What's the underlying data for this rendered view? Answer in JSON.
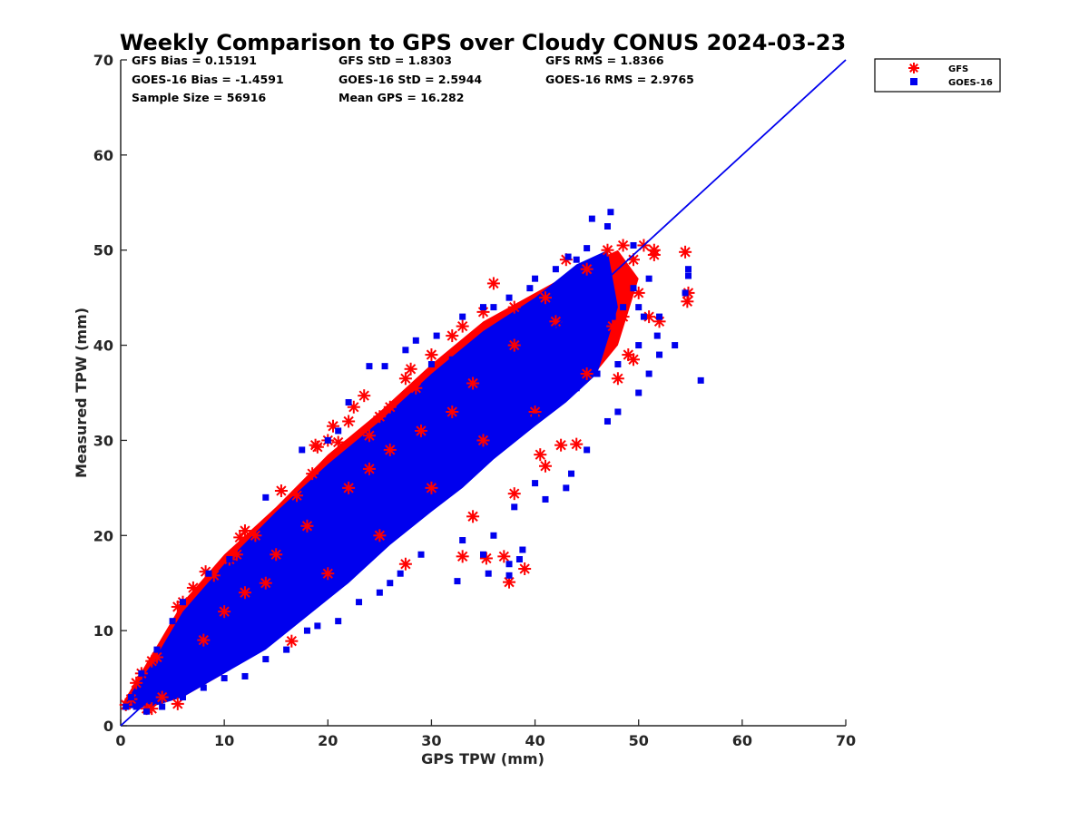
{
  "chart_data": {
    "type": "scatter",
    "title": "Weekly Comparison to GPS over Cloudy CONUS 2024-03-23",
    "xlabel": "GPS TPW (mm)",
    "ylabel": "Measured TPW (mm)",
    "xlim": [
      0,
      70
    ],
    "ylim": [
      0,
      70
    ],
    "xticks": [
      "0",
      "10",
      "20",
      "30",
      "40",
      "50",
      "60",
      "70"
    ],
    "yticks": [
      "0",
      "10",
      "20",
      "30",
      "40",
      "50",
      "60",
      "70"
    ],
    "legend_position": "outside top-right",
    "stats": [
      [
        "GFS Bias = 0.15191",
        "GFS StD = 1.8303",
        "GFS RMS = 1.8366"
      ],
      [
        "GOES-16 Bias = -1.4591",
        "GOES-16 StD = 2.5944",
        "GOES-16 RMS = 2.9765"
      ],
      [
        "Sample Size = 56916",
        "Mean GPS = 16.282",
        ""
      ]
    ],
    "reference_line": {
      "x": [
        0,
        70
      ],
      "y": [
        0,
        70
      ],
      "color": "#0000ee"
    },
    "series": [
      {
        "name": "GFS",
        "marker": "asterisk",
        "color": "#ff0000",
        "points": [
          [
            0.5,
            2.2
          ],
          [
            1,
            2.8
          ],
          [
            1.5,
            4.5
          ],
          [
            2,
            5.5
          ],
          [
            3,
            6.8
          ],
          [
            3.5,
            7.2
          ],
          [
            2.5,
            1.8
          ],
          [
            4,
            3
          ],
          [
            5.5,
            12.5
          ],
          [
            6,
            13
          ],
          [
            7,
            14.5
          ],
          [
            8.2,
            16.2
          ],
          [
            9,
            15.8
          ],
          [
            10.5,
            17.5
          ],
          [
            11.2,
            18
          ],
          [
            11.5,
            19.8
          ],
          [
            12,
            20.5
          ],
          [
            13,
            20
          ],
          [
            15.5,
            24.7
          ],
          [
            17,
            24.2
          ],
          [
            18.5,
            26.5
          ],
          [
            18.8,
            29.5
          ],
          [
            19,
            29.3
          ],
          [
            20,
            30
          ],
          [
            20.5,
            31.5
          ],
          [
            21,
            29.8
          ],
          [
            22,
            32
          ],
          [
            22.5,
            33.5
          ],
          [
            23.5,
            34.7
          ],
          [
            24,
            30.5
          ],
          [
            25,
            32.5
          ],
          [
            26,
            33.5
          ],
          [
            27.5,
            36.5
          ],
          [
            28,
            37.5
          ],
          [
            28.5,
            35.5
          ],
          [
            30,
            39
          ],
          [
            32,
            41
          ],
          [
            33,
            42
          ],
          [
            35,
            43.5
          ],
          [
            36,
            46.5
          ],
          [
            38,
            44
          ],
          [
            41,
            45
          ],
          [
            43,
            49
          ],
          [
            45,
            48
          ],
          [
            47,
            50
          ],
          [
            48.5,
            50.5
          ],
          [
            49.5,
            49
          ],
          [
            50.5,
            50.5
          ],
          [
            51.5,
            50
          ],
          [
            51.5,
            49.5
          ],
          [
            52,
            42.5
          ],
          [
            51,
            43
          ],
          [
            50,
            45.5
          ],
          [
            49,
            39
          ],
          [
            49.5,
            38.5
          ],
          [
            48,
            36.5
          ],
          [
            47.5,
            42
          ],
          [
            48.5,
            43
          ],
          [
            54.5,
            49.8
          ],
          [
            54.8,
            45.5
          ],
          [
            54.7,
            44.6
          ],
          [
            40.5,
            28.5
          ],
          [
            41,
            27.3
          ],
          [
            42.5,
            29.5
          ],
          [
            44,
            29.6
          ],
          [
            38,
            24.4
          ],
          [
            39,
            16.5
          ],
          [
            37.5,
            15.1
          ],
          [
            35.3,
            17.6
          ],
          [
            37,
            17.8
          ],
          [
            33,
            17.8
          ],
          [
            34,
            22
          ],
          [
            27.5,
            17
          ],
          [
            16.5,
            8.9
          ],
          [
            5.5,
            2.3
          ],
          [
            3,
            1.8
          ],
          [
            12,
            14
          ],
          [
            20,
            16
          ],
          [
            25,
            20
          ],
          [
            30,
            25
          ],
          [
            35,
            30
          ],
          [
            40,
            33
          ],
          [
            45,
            37
          ],
          [
            22,
            25
          ],
          [
            18,
            21
          ],
          [
            8,
            9
          ],
          [
            14,
            15
          ],
          [
            26,
            29
          ],
          [
            32,
            33
          ],
          [
            38,
            40
          ],
          [
            42,
            42.5
          ],
          [
            10,
            12
          ],
          [
            15,
            18
          ],
          [
            24,
            27
          ],
          [
            29,
            31
          ],
          [
            34,
            36
          ]
        ]
      },
      {
        "name": "GOES-16",
        "marker": "square",
        "color": "#0000ee",
        "points": [
          [
            47.3,
            54
          ],
          [
            45.5,
            53.3
          ],
          [
            47,
            52.5
          ],
          [
            49.5,
            50.5
          ],
          [
            44,
            49
          ],
          [
            45,
            50.2
          ],
          [
            46,
            48
          ],
          [
            42,
            48
          ],
          [
            43.2,
            49.3
          ],
          [
            40,
            47
          ],
          [
            37.5,
            45
          ],
          [
            39.5,
            46
          ],
          [
            36,
            44
          ],
          [
            35,
            44
          ],
          [
            33,
            43
          ],
          [
            30.5,
            41
          ],
          [
            28.5,
            40.5
          ],
          [
            25.5,
            37.8
          ],
          [
            22,
            34
          ],
          [
            21,
            31
          ],
          [
            20,
            30
          ],
          [
            17.5,
            29
          ],
          [
            14,
            24
          ],
          [
            10.5,
            17.5
          ],
          [
            8.5,
            16
          ],
          [
            6,
            13
          ],
          [
            5,
            11
          ],
          [
            3.5,
            8
          ],
          [
            2,
            5.5
          ],
          [
            1,
            3
          ],
          [
            0.5,
            2
          ],
          [
            2.5,
            1.5
          ],
          [
            4,
            2
          ],
          [
            6,
            3
          ],
          [
            8,
            4
          ],
          [
            10,
            5
          ],
          [
            12,
            5.2
          ],
          [
            14,
            7
          ],
          [
            16,
            8
          ],
          [
            18,
            10
          ],
          [
            19,
            10.5
          ],
          [
            21,
            11
          ],
          [
            23,
            13
          ],
          [
            25,
            14
          ],
          [
            26,
            15
          ],
          [
            27,
            16
          ],
          [
            29,
            18
          ],
          [
            32.5,
            15.2
          ],
          [
            33,
            19.5
          ],
          [
            35,
            18
          ],
          [
            35.5,
            16
          ],
          [
            37.5,
            17
          ],
          [
            37.5,
            15.8
          ],
          [
            38.5,
            17.5
          ],
          [
            38.8,
            18.5
          ],
          [
            36,
            20
          ],
          [
            38,
            23
          ],
          [
            40,
            25.5
          ],
          [
            41,
            23.8
          ],
          [
            43,
            25
          ],
          [
            43.5,
            26.5
          ],
          [
            45,
            29
          ],
          [
            47,
            32
          ],
          [
            48,
            33
          ],
          [
            50,
            35
          ],
          [
            51,
            37
          ],
          [
            52,
            39
          ],
          [
            53.5,
            40
          ],
          [
            54.5,
            45.5
          ],
          [
            54.8,
            47.3
          ],
          [
            54.8,
            48
          ],
          [
            56,
            36.3
          ],
          [
            51.8,
            41
          ],
          [
            50.5,
            43
          ],
          [
            50,
            44
          ],
          [
            49.5,
            46
          ],
          [
            51,
            47
          ],
          [
            45.5,
            42
          ],
          [
            42,
            40
          ],
          [
            40,
            38
          ],
          [
            36,
            34
          ],
          [
            33,
            32
          ],
          [
            30,
            29
          ],
          [
            28,
            27
          ],
          [
            26,
            25
          ],
          [
            24,
            23
          ],
          [
            22,
            21
          ],
          [
            20,
            19.5
          ],
          [
            18,
            17.5
          ],
          [
            16,
            15.5
          ],
          [
            14,
            13.5
          ],
          [
            12,
            11.5
          ],
          [
            10,
            9.5
          ],
          [
            8,
            7.5
          ],
          [
            6,
            5.5
          ],
          [
            4,
            4
          ],
          [
            3,
            3
          ],
          [
            2,
            2.5
          ],
          [
            1.5,
            2
          ],
          [
            31,
            30
          ],
          [
            33.5,
            31
          ],
          [
            35,
            33
          ],
          [
            37,
            35
          ],
          [
            39,
            36
          ],
          [
            41,
            37
          ],
          [
            43,
            39
          ],
          [
            44.5,
            40
          ],
          [
            46,
            41
          ],
          [
            47.5,
            43
          ],
          [
            48.5,
            44
          ],
          [
            21.5,
            22
          ],
          [
            23.5,
            24
          ],
          [
            25.5,
            26
          ],
          [
            27.5,
            28
          ],
          [
            29.5,
            30
          ],
          [
            19,
            18
          ],
          [
            17,
            16.5
          ],
          [
            15,
            14
          ],
          [
            13,
            12.8
          ],
          [
            11,
            10.5
          ],
          [
            9,
            8.5
          ],
          [
            7,
            6.5
          ],
          [
            5,
            5
          ],
          [
            24,
            37.8
          ],
          [
            27.5,
            39.5
          ],
          [
            30,
            38
          ],
          [
            32,
            38.5
          ],
          [
            34,
            39
          ],
          [
            26.5,
            24
          ],
          [
            28.5,
            26
          ],
          [
            30.5,
            27
          ],
          [
            32,
            28
          ],
          [
            34,
            29
          ],
          [
            36,
            30
          ],
          [
            38,
            31.5
          ],
          [
            40,
            32.5
          ],
          [
            42,
            34
          ],
          [
            44,
            35.5
          ],
          [
            46,
            37
          ],
          [
            48,
            38
          ],
          [
            50,
            40
          ],
          [
            52,
            43
          ]
        ]
      }
    ]
  }
}
